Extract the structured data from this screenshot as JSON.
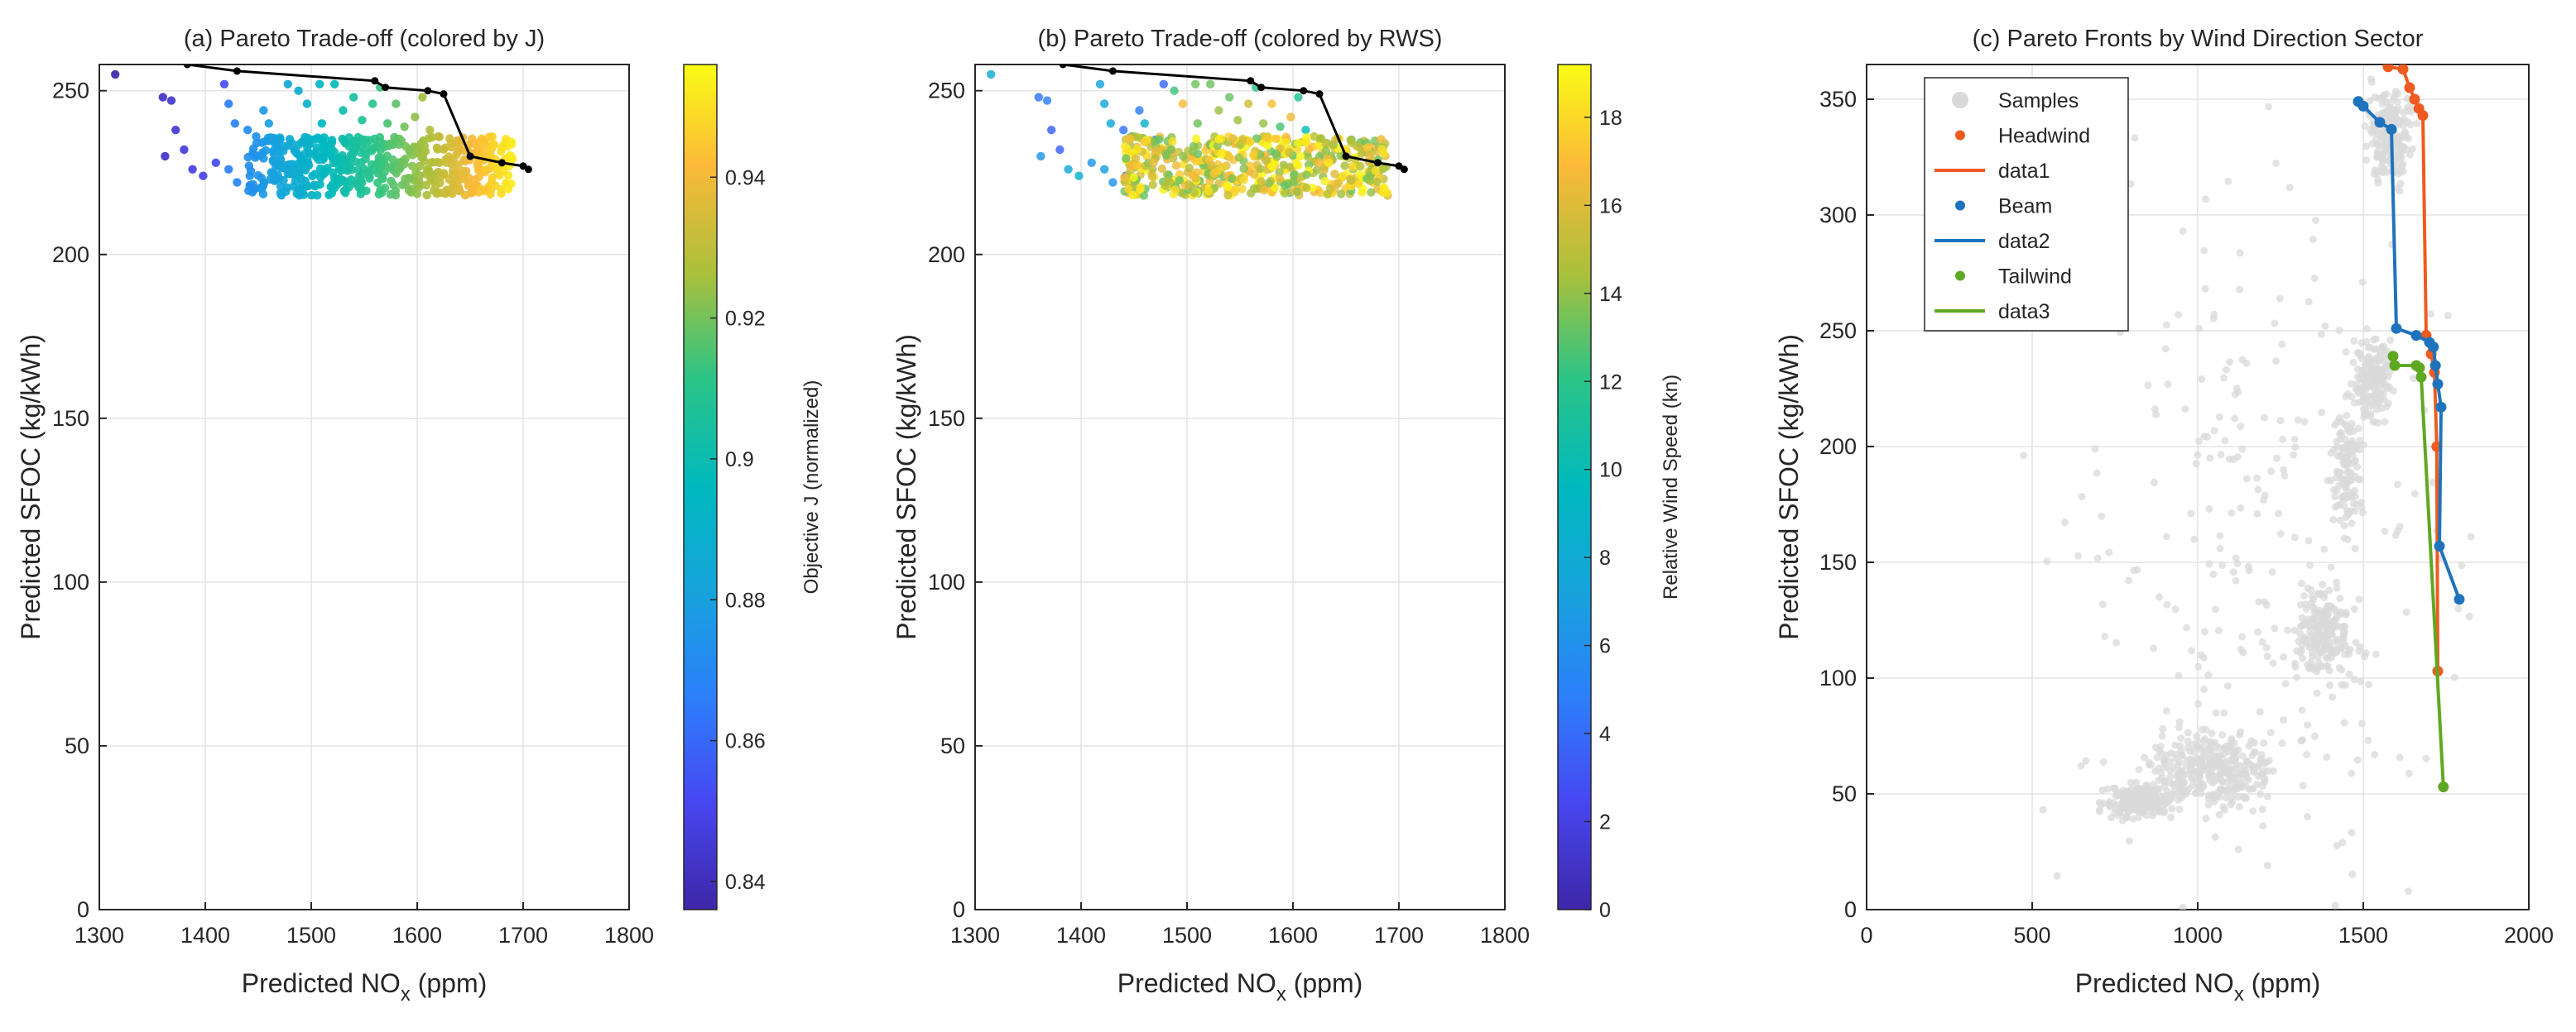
{
  "chart_data": [
    {
      "id": "a",
      "type": "scatter",
      "title": "(a) Pareto Trade-off (colored by J)",
      "xlabel": "Predicted NO",
      "xlabel_sub": "x",
      "xlabel_unit": " (ppm)",
      "ylabel": "Predicted SFOC (kg/kWh)",
      "xlim": [
        1300,
        1800
      ],
      "ylim": [
        0,
        258
      ],
      "xticks": [
        "1300",
        "1400",
        "1500",
        "1600",
        "1700",
        "1800"
      ],
      "yticks": [
        "0",
        "50",
        "100",
        "150",
        "200",
        "250"
      ],
      "grid": true,
      "colorbar": {
        "label": "Objective J (normalized)",
        "range": [
          0.836,
          0.956
        ],
        "ticks": [
          "0.84",
          "0.86",
          "0.88",
          "0.9",
          "0.92",
          "0.94"
        ],
        "colormap": "parula"
      },
      "points": [
        [
          1315,
          255
        ],
        [
          1360,
          248
        ],
        [
          1368,
          247
        ],
        [
          1362,
          230
        ],
        [
          1372,
          238
        ],
        [
          1380,
          232
        ],
        [
          1388,
          226
        ],
        [
          1398,
          224
        ],
        [
          1410,
          228
        ],
        [
          1422,
          226
        ],
        [
          1430,
          222
        ],
        [
          1442,
          224
        ],
        [
          1418,
          252
        ],
        [
          1422,
          246
        ],
        [
          1428,
          240
        ],
        [
          1440,
          238
        ],
        [
          1448,
          236
        ],
        [
          1455,
          244
        ],
        [
          1460,
          240
        ],
        [
          1470,
          235
        ],
        [
          1478,
          252
        ],
        [
          1488,
          250
        ],
        [
          1496,
          246
        ],
        [
          1508,
          252
        ],
        [
          1510,
          240
        ],
        [
          1522,
          252
        ],
        [
          1530,
          244
        ],
        [
          1540,
          248
        ],
        [
          1548,
          241
        ],
        [
          1558,
          246
        ],
        [
          1565,
          251
        ],
        [
          1572,
          240
        ],
        [
          1580,
          246
        ],
        [
          1588,
          239
        ],
        [
          1598,
          242
        ],
        [
          1605,
          248
        ],
        [
          1612,
          238
        ],
        [
          1620,
          236
        ],
        [
          1632,
          234
        ],
        [
          1640,
          232
        ]
      ],
      "cloud": {
        "x_min": 1440,
        "x_max": 1690,
        "y_min": 218,
        "y_max": 236
      },
      "front": {
        "x": [
          1383,
          1430,
          1560,
          1570,
          1610,
          1625,
          1650,
          1680,
          1700,
          1705
        ],
        "y": [
          258,
          256,
          253,
          251,
          250,
          249,
          230,
          228,
          227,
          226
        ]
      }
    },
    {
      "id": "b",
      "type": "scatter",
      "title": "(b) Pareto Trade-off (colored by RWS)",
      "xlabel": "Predicted NO",
      "xlabel_sub": "x",
      "xlabel_unit": " (ppm)",
      "ylabel": "Predicted SFOC (kg/kWh)",
      "xlim": [
        1300,
        1800
      ],
      "ylim": [
        0,
        258
      ],
      "xticks": [
        "1300",
        "1400",
        "1500",
        "1600",
        "1700",
        "1800"
      ],
      "yticks": [
        "0",
        "50",
        "100",
        "150",
        "200",
        "250"
      ],
      "grid": true,
      "colorbar": {
        "label": "Relative Wind Speed (kn)",
        "range": [
          0,
          19.2
        ],
        "ticks": [
          "0",
          "2",
          "4",
          "6",
          "8",
          "10",
          "12",
          "14",
          "16",
          "18"
        ],
        "colormap": "parula"
      },
      "front": {
        "x": [
          1383,
          1430,
          1560,
          1570,
          1610,
          1625,
          1650,
          1680,
          1700,
          1705
        ],
        "y": [
          258,
          256,
          253,
          251,
          250,
          249,
          230,
          228,
          227,
          226
        ]
      }
    },
    {
      "id": "c",
      "type": "line",
      "title": "(c) Pareto Fronts by Wind Direction Sector",
      "xlabel": "Predicted NO",
      "xlabel_sub": "x",
      "xlabel_unit": " (ppm)",
      "ylabel": "Predicted SFOC (kg/kWh)",
      "xlim": [
        0,
        2000
      ],
      "ylim": [
        0,
        365
      ],
      "xticks": [
        "0",
        "500",
        "1000",
        "1500",
        "2000"
      ],
      "yticks": [
        "0",
        "50",
        "100",
        "150",
        "200",
        "250",
        "300",
        "350"
      ],
      "grid": true,
      "legend_position": "top-left",
      "legend": [
        "Samples",
        "Headwind",
        "data1",
        "Beam",
        "data2",
        "Tailwind",
        "data3"
      ],
      "samples_clusters": [
        {
          "cx": 820,
          "cy": 47,
          "rx": 90,
          "ry": 6,
          "n": 220
        },
        {
          "cx": 1050,
          "cy": 60,
          "rx": 160,
          "ry": 14,
          "n": 320
        },
        {
          "cx": 1380,
          "cy": 120,
          "rx": 80,
          "ry": 18,
          "n": 200
        },
        {
          "cx": 1450,
          "cy": 190,
          "rx": 40,
          "ry": 25,
          "n": 120
        },
        {
          "cx": 1530,
          "cy": 230,
          "rx": 50,
          "ry": 16,
          "n": 160
        },
        {
          "cx": 1580,
          "cy": 335,
          "rx": 60,
          "ry": 18,
          "n": 220
        },
        {
          "cx": 1200,
          "cy": 160,
          "rx": 550,
          "ry": 140,
          "n": 260
        }
      ],
      "series": [
        {
          "name": "Headwind",
          "line_name": "data1",
          "color": "#ee5b1f",
          "x": [
            1575,
            1620,
            1640,
            1655,
            1668,
            1680,
            1690,
            1705,
            1715,
            1722,
            1725
          ],
          "y": [
            364,
            363,
            355,
            350,
            346,
            343,
            248,
            240,
            232,
            200,
            103
          ]
        },
        {
          "name": "Beam",
          "line_name": "data2",
          "color": "#1f73bd",
          "x": [
            1485,
            1500,
            1550,
            1585,
            1600,
            1660,
            1700,
            1712,
            1718,
            1725,
            1735,
            1730,
            1790
          ],
          "y": [
            349,
            347,
            340,
            337,
            251,
            248,
            245,
            243,
            235,
            227,
            217,
            157,
            134
          ]
        },
        {
          "name": "Tailwind",
          "line_name": "data3",
          "color": "#5fa823",
          "x": [
            1590,
            1595,
            1660,
            1670,
            1675,
            1742
          ],
          "y": [
            239,
            235,
            235,
            234,
            230,
            53
          ]
        }
      ]
    }
  ]
}
